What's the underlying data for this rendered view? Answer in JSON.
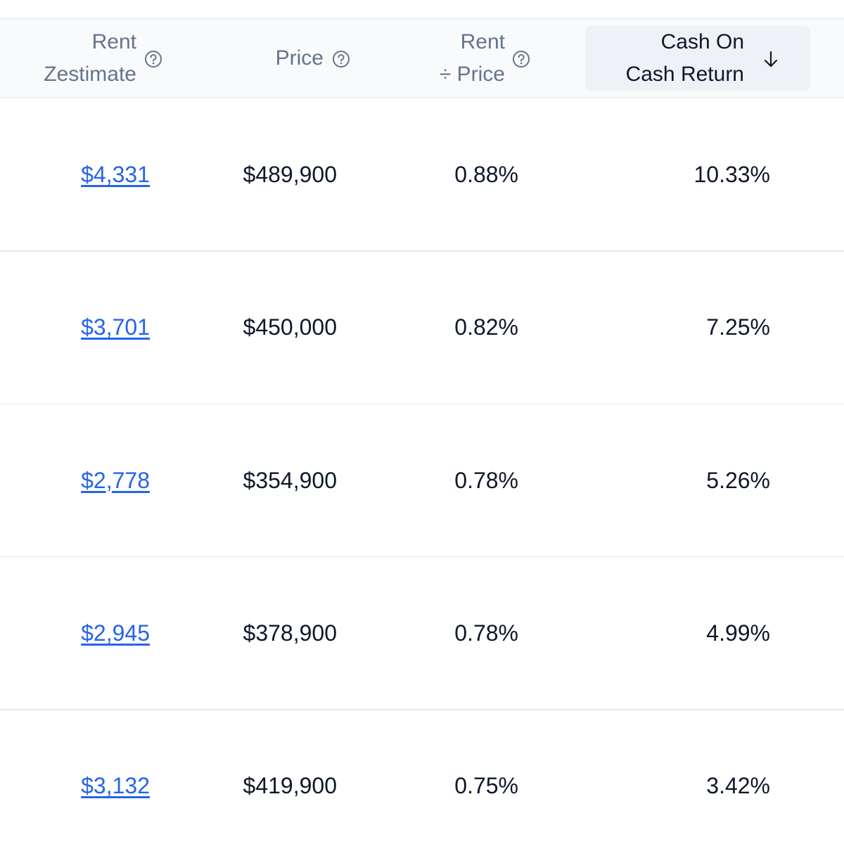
{
  "table": {
    "columns": [
      {
        "lines": [
          "Rent",
          "Zestimate"
        ]
      },
      {
        "lines": [
          "Price"
        ]
      },
      {
        "lines": [
          "Rent",
          "÷ Price"
        ]
      },
      {
        "lines": [
          "Cash On",
          "Cash Return"
        ]
      }
    ],
    "rows": [
      [
        "$4,331",
        "$489,900",
        "0.88%",
        "10.33%"
      ],
      [
        "$3,701",
        "$450,000",
        "0.82%",
        "7.25%"
      ],
      [
        "$2,778",
        "$354,900",
        "0.78%",
        "5.26%"
      ],
      [
        "$2,945",
        "$378,900",
        "0.78%",
        "4.99%"
      ],
      [
        "$3,132",
        "$419,900",
        "0.75%",
        "3.42%"
      ]
    ]
  }
}
